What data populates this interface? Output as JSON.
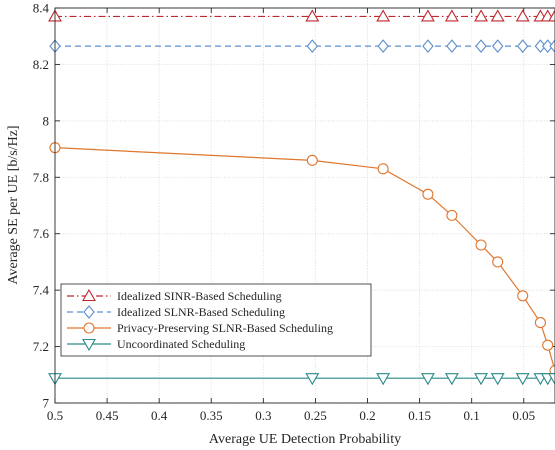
{
  "chart_data": {
    "type": "line",
    "xlabel": "Average UE Detection Probability",
    "ylabel": "Average SE per UE [b/s/Hz]",
    "xlim": [
      0.5,
      0.02
    ],
    "ylim": [
      7.0,
      8.4
    ],
    "x_reversed": true,
    "grid": true,
    "legend_position": "bottom-left",
    "x_ticks": [
      0.5,
      0.45,
      0.4,
      0.35,
      0.3,
      0.25,
      0.2,
      0.15,
      0.1,
      0.05
    ],
    "x_tick_labels": [
      "0.5",
      "0.45",
      "0.4",
      "0.35",
      "0.3",
      "0.25",
      "0.2",
      "0.15",
      "0.1",
      "0.05"
    ],
    "y_ticks": [
      7.0,
      7.2,
      7.4,
      7.6,
      7.8,
      8.0,
      8.2,
      8.4
    ],
    "y_tick_labels": [
      "7",
      "7.2",
      "7.4",
      "7.6",
      "7.8",
      "8",
      "8.2",
      "8.4"
    ],
    "series": [
      {
        "name": "Idealized SINR-Based Scheduling",
        "color": "#c0282f",
        "dash": "dashdot",
        "marker": "triangle-up",
        "x": [
          0.5,
          0.253,
          0.185,
          0.142,
          0.119,
          0.091,
          0.075,
          0.051,
          0.034,
          0.027,
          0.02
        ],
        "y": [
          8.37,
          8.37,
          8.37,
          8.37,
          8.37,
          8.37,
          8.37,
          8.37,
          8.37,
          8.37,
          8.37
        ]
      },
      {
        "name": "Idealized SLNR-Based Scheduling",
        "color": "#5b8fd0",
        "dash": "dashed",
        "marker": "diamond",
        "x": [
          0.5,
          0.253,
          0.185,
          0.142,
          0.119,
          0.091,
          0.075,
          0.051,
          0.034,
          0.027,
          0.02
        ],
        "y": [
          8.265,
          8.265,
          8.265,
          8.265,
          8.265,
          8.265,
          8.265,
          8.265,
          8.265,
          8.265,
          8.265
        ]
      },
      {
        "name": "Privacy-Preserving SLNR-Based Scheduling",
        "color": "#e0762f",
        "dash": "solid",
        "marker": "circle",
        "x": [
          0.5,
          0.253,
          0.185,
          0.142,
          0.119,
          0.091,
          0.075,
          0.051,
          0.034,
          0.027,
          0.02
        ],
        "y": [
          7.905,
          7.86,
          7.83,
          7.74,
          7.665,
          7.56,
          7.5,
          7.38,
          7.285,
          7.205,
          7.115
        ]
      },
      {
        "name": "Uncoordinated Scheduling",
        "color": "#2a8a8a",
        "dash": "solid",
        "marker": "triangle-down",
        "x": [
          0.5,
          0.253,
          0.185,
          0.142,
          0.119,
          0.091,
          0.075,
          0.051,
          0.034,
          0.027,
          0.02
        ],
        "y": [
          7.088,
          7.088,
          7.088,
          7.088,
          7.088,
          7.088,
          7.088,
          7.088,
          7.088,
          7.088,
          7.088
        ]
      }
    ]
  }
}
